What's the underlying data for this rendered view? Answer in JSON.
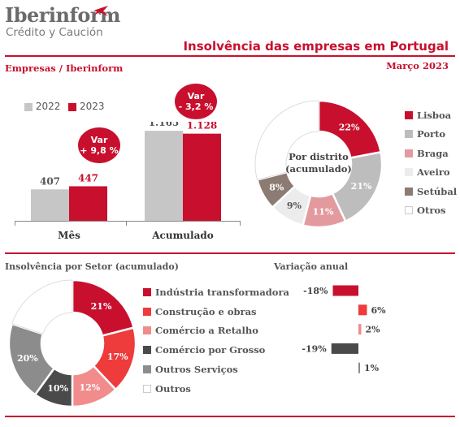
{
  "header": {
    "logo_name": "Iberinform",
    "logo_sub": "Crédito y Caución",
    "title": "Insolvência das empresas em Portugal",
    "section_left": "Empresas / Iberinform",
    "section_right": "Março 2023"
  },
  "colors": {
    "accent": "#c8102e",
    "grey_bar": "#c6c6c6"
  },
  "bubbles": {
    "mes": [
      "Var",
      "+ 9,8 %"
    ],
    "acumulado": [
      "Var",
      "- 3,2 %"
    ]
  },
  "donut_district_center": [
    "Por distrito",
    "(acumulado)"
  ],
  "chart_data": [
    {
      "type": "bar",
      "categories": [
        "Mês",
        "Acumulado"
      ],
      "series": [
        {
          "name": "2022",
          "values": [
            407,
            1165
          ],
          "color": "#c6c6c6",
          "labels": [
            "407",
            "1.165"
          ]
        },
        {
          "name": "2023",
          "values": [
            447,
            1128
          ],
          "color": "#c8102e",
          "labels": [
            "447",
            "1.128"
          ]
        }
      ]
    },
    {
      "type": "pie",
      "title": "",
      "slices": [
        {
          "label": "Lisboa",
          "value": 22,
          "display": "22%",
          "color": "#c8102e",
          "text_color": "#ffffff"
        },
        {
          "label": "Porto",
          "value": 21,
          "display": "21%",
          "color": "#bdbdbd",
          "text_color": "#ffffff"
        },
        {
          "label": "Braga",
          "value": 11,
          "display": "11%",
          "color": "#e39a9f",
          "text_color": "#ffffff"
        },
        {
          "label": "Aveiro",
          "value": 9,
          "display": "9%",
          "color": "#ececec",
          "text_color": "#555555"
        },
        {
          "label": "Setúbal",
          "value": 8,
          "display": "8%",
          "color": "#8c7b73",
          "text_color": "#ffffff"
        },
        {
          "label": "Otros",
          "value": 29,
          "display": "",
          "color": "#ffffff",
          "text_color": "#555555"
        }
      ]
    },
    {
      "type": "pie",
      "title": "Insolvência por Setor (acumulado)",
      "slices": [
        {
          "label": "Indústria transformadora",
          "value": 21,
          "display": "21%",
          "color": "#c8102e",
          "text_color": "#ffffff"
        },
        {
          "label": "Construção e obras",
          "value": 17,
          "display": "17%",
          "color": "#ee3b3b",
          "text_color": "#ffffff"
        },
        {
          "label": "Comércio a Retalho",
          "value": 12,
          "display": "12%",
          "color": "#f28b8b",
          "text_color": "#ffffff"
        },
        {
          "label": "Comércio por Grosso",
          "value": 10,
          "display": "10%",
          "color": "#4a4a4a",
          "text_color": "#ffffff"
        },
        {
          "label": "Outros Serviços",
          "value": 20,
          "display": "20%",
          "color": "#8c8c8c",
          "text_color": "#ffffff"
        },
        {
          "label": "Outros",
          "value": 20,
          "display": "",
          "color": "#ffffff",
          "text_color": "#555555"
        }
      ]
    },
    {
      "type": "bar",
      "title": "Variação anual",
      "categories": [
        "Indústria transformadora",
        "Construção e obras",
        "Comércio a Retalho",
        "Comércio por Grosso",
        "Outros Serviços"
      ],
      "values": [
        -18,
        6,
        2,
        -19,
        1
      ],
      "labels": [
        "-18%",
        "6%",
        "2%",
        "-19%",
        "1%"
      ],
      "colors": [
        "#c8102e",
        "#ee3b3b",
        "#f28b8b",
        "#4a4a4a",
        "#8c8c8c"
      ]
    }
  ]
}
